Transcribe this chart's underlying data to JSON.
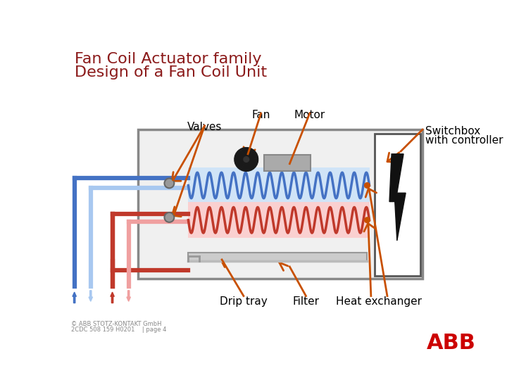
{
  "title_line1": "Fan Coil Actuator family",
  "title_line2": "Design of a Fan Coil Unit",
  "title_color": "#8B1A1A",
  "bg_color": "#FFFFFF",
  "arrow_color": "#C85000",
  "blue_pipe": "#4472C4",
  "blue_pipe_light": "#A8C8F0",
  "red_pipe": "#C0392B",
  "red_pipe_light": "#F0A0A0",
  "blue_coil": "#4472C4",
  "red_coil": "#C0392B",
  "blue_coil_bg": "#D0E4F7",
  "red_coil_bg": "#FAD0D0",
  "box_edge": "#888888",
  "box_fill": "#F0F0F0",
  "switchbox_fill": "#FFFFFF",
  "switchbox_edge": "#555555",
  "valve_color": "#999999",
  "motor_color": "#AAAAAA",
  "labels": {
    "valves": "Valves",
    "fan": "Fan",
    "motor": "Motor",
    "switchbox_line1": "Switchbox",
    "switchbox_line2": "with controller",
    "drip_tray": "Drip tray",
    "filter": "Filter",
    "heat_exchanger": "Heat exchanger"
  },
  "footer_text1": "© ABB STOTZ-KONTAKT GmbH",
  "footer_text2": "2CDC 508 159 H0201    | page 4",
  "abb_red": "#CC0000"
}
